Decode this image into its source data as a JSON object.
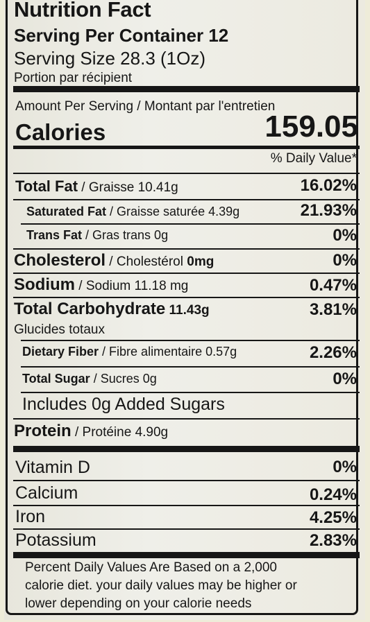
{
  "title": "Nutrition Fact",
  "servings_per_container": "Serving Per Container 12",
  "serving_size": "Serving Size 28.3 (1Oz)",
  "portion_fr": "Portion par récipient",
  "amount_per_serving": "Amount Per Serving / Montant par l'entretien",
  "calories_label": "Calories",
  "calories_value": "159.05",
  "daily_value_header": "% Daily Value*",
  "nutrients": [
    {
      "name": "Total Fat",
      "detail": " / Graisse 10.41g",
      "pct": "16.02%"
    },
    {
      "name": "Saturated Fat",
      "detail": " / Graisse saturée 4.39g",
      "pct": "21.93%"
    },
    {
      "name": "Trans Fat",
      "detail": " / Gras trans 0g",
      "pct": "0%"
    },
    {
      "name": "Cholesterol",
      "detail": " / Cholestérol ",
      "amount": "0mg",
      "pct": "0%"
    },
    {
      "name": "Sodium",
      "detail": " / Sodium 11.18 mg",
      "pct": "0.47%"
    },
    {
      "name": "Total Carbohydrate",
      "detail": " 11.43g",
      "sub": "Glucides totaux",
      "pct": "3.81%"
    },
    {
      "name": "Dietary Fiber",
      "detail": " / Fibre alimentaire 0.57g",
      "pct": "2.26%"
    },
    {
      "name": "Total Sugar",
      "detail": " / Sucres 0g",
      "pct": "0%"
    },
    {
      "name": "Includes 0g Added Sugars"
    },
    {
      "name": "Protein",
      "detail": " / Protéine 4.90g"
    }
  ],
  "vitamins": [
    {
      "name": "Vitamin D",
      "pct": "0%"
    },
    {
      "name": "Calcium",
      "pct": "0.24%"
    },
    {
      "name": "Iron",
      "pct": "4.25%"
    },
    {
      "name": "Potassium",
      "pct": "2.83%"
    }
  ],
  "footnote": [
    "Percent Daily Values Are Based on a 2,000",
    "calorie diet. your daily values may be higher or",
    "lower depending on your calorie needs"
  ]
}
